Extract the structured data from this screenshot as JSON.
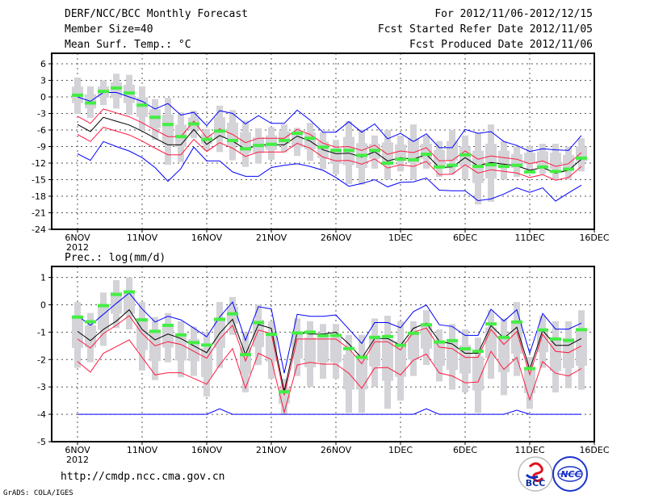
{
  "header": {
    "title": "DERF/NCC/BCC Monthly Forecast",
    "member_size": "Member Size=40",
    "variable": "Mean Surf. Temp.: °C",
    "period": "For 2012/11/06-2012/12/15",
    "refer_date": "Fcst Started Refer Date 2012/11/05",
    "produced_date": "Fcst Produced Date 2012/11/06"
  },
  "footer": {
    "url": "http://cmdp.ncc.cma.gov.cn",
    "credit": "GrADS: COLA/IGES",
    "logo_bcc": "BCC",
    "logo_ncc": "NCC"
  },
  "colors": {
    "mean": "#000000",
    "red": "#ff1a40",
    "blue": "#0000ff",
    "obs": "#44ee44",
    "box": "#d3d3d8",
    "grid": "#555555"
  },
  "chart_data": [
    {
      "type": "line",
      "title": "Mean Surf. Temp.: °C",
      "x_ticks": [
        "6NOV",
        "11NOV",
        "16NOV",
        "21NOV",
        "26NOV",
        "1DEC",
        "6DEC",
        "11DEC",
        "16DEC"
      ],
      "x_sub": "2012",
      "y_ticks": [
        6,
        3,
        0,
        -3,
        -6,
        -9,
        -12,
        -15,
        -18,
        -21,
        -24
      ],
      "ylim": [
        -24,
        7.9
      ],
      "grid": true,
      "days": 40,
      "series": {
        "mean": [
          -5,
          -6.3,
          -3.7,
          -4.4,
          -5.1,
          -6.2,
          -7.5,
          -8.7,
          -8.7,
          -5.9,
          -8.6,
          -7,
          -8,
          -9.5,
          -8.7,
          -8.7,
          -8.7,
          -7.1,
          -8,
          -9.6,
          -10.3,
          -10.2,
          -10.9,
          -9.95,
          -11.6,
          -11,
          -11.3,
          -10.4,
          -12.8,
          -12.7,
          -11,
          -12.5,
          -11.9,
          -12.2,
          -12.5,
          -13.3,
          -12.8,
          -13.8,
          -13.3,
          -11.3
        ],
        "red_hi": [
          -3.5,
          -4.8,
          -2.2,
          -2.9,
          -3.6,
          -4.7,
          -6,
          -7.2,
          -7.2,
          -4.4,
          -7.4,
          -5.8,
          -6.8,
          -8.3,
          -7.5,
          -7.5,
          -7.5,
          -5.9,
          -6.8,
          -8.4,
          -9.1,
          -9,
          -9.7,
          -8.75,
          -10.4,
          -9.8,
          -10.1,
          -9.2,
          -11.6,
          -11.5,
          -9.8,
          -11.3,
          -10.7,
          -11,
          -11.3,
          -12.1,
          -11.6,
          -12.6,
          -12.1,
          -10.1
        ],
        "red_lo": [
          -6.8,
          -8.1,
          -5.5,
          -6.2,
          -6.9,
          -8,
          -9.3,
          -10.5,
          -10.5,
          -7.7,
          -9.9,
          -8.3,
          -9.3,
          -10.8,
          -10,
          -10,
          -10,
          -8.4,
          -9.3,
          -10.9,
          -11.6,
          -11.5,
          -12.2,
          -11.25,
          -12.9,
          -12.3,
          -12.6,
          -11.7,
          -14.1,
          -14,
          -12.3,
          -13.8,
          -13.2,
          -13.5,
          -13.8,
          -14.6,
          -14.1,
          -15.1,
          -14.6,
          -12.6
        ],
        "blue_hi": [
          0,
          -0.8,
          0.8,
          0.8,
          0,
          -0.8,
          -2.2,
          -1.2,
          -3.3,
          -2.8,
          -5.2,
          -2.5,
          -3,
          -4.9,
          -3.4,
          -4.8,
          -4.8,
          -2.4,
          -4.2,
          -6.4,
          -6.4,
          -4.5,
          -6.4,
          -4.9,
          -7.6,
          -6.6,
          -8.1,
          -6.7,
          -9.2,
          -9.2,
          -5.9,
          -6.6,
          -6.3,
          -8.1,
          -8.8,
          -9.9,
          -9.4,
          -9.6,
          -9.7,
          -7.0
        ],
        "blue_lo": [
          -10.3,
          -11.5,
          -8.1,
          -9,
          -9.8,
          -11,
          -12.8,
          -15.3,
          -13,
          -9.1,
          -11.6,
          -11.6,
          -13.6,
          -14.4,
          -14.4,
          -12.8,
          -12.4,
          -12.1,
          -12.6,
          -13.3,
          -14.6,
          -16.2,
          -15.7,
          -15,
          -16.3,
          -15.5,
          -15.4,
          -14.7,
          -16.9,
          -17,
          -17,
          -18.8,
          -18.5,
          -17.6,
          -16.5,
          -17.3,
          -16.5,
          -18.9,
          -17.4,
          -16
        ],
        "obs": [
          0.3,
          -1.1,
          1,
          1.6,
          0.7,
          -1.5,
          -3.7,
          -5,
          -7.2,
          -4.9,
          -7.7,
          -6.2,
          -7.9,
          -9.4,
          -8.8,
          -8.6,
          -7.9,
          -6.6,
          -7.5,
          -9.1,
          -9.7,
          -9.7,
          -10.6,
          -9.7,
          -12,
          -11.3,
          -11.4,
          -10.4,
          -12.7,
          -12.4,
          -10.5,
          -12.6,
          -12.3,
          -12.6,
          -12.4,
          -13.6,
          -12.7,
          -13.5,
          -13.1,
          -11.1
        ],
        "range_hi": [
          3.5,
          1.9,
          3,
          4.2,
          4,
          1.9,
          -0.4,
          -0.2,
          -2.8,
          -2.5,
          -5.8,
          -1.6,
          -2.4,
          -4.3,
          -5.7,
          -5.5,
          -5,
          -5.6,
          -4.7,
          -6.4,
          -7.8,
          -4.4,
          -5.9,
          -7,
          -6,
          -7,
          -5,
          -7,
          -8,
          -6,
          -7,
          -6.5,
          -5,
          -8,
          -9,
          -9,
          -8.5,
          -8.5,
          -9,
          -7.5
        ],
        "range_lo": [
          -3.1,
          -3.8,
          -1.5,
          -2.1,
          -3.3,
          -6,
          -7.8,
          -12.3,
          -11.8,
          -7.5,
          -9.7,
          -10,
          -11.5,
          -12.7,
          -12.1,
          -11.4,
          -10,
          -10.7,
          -11.6,
          -13.1,
          -14,
          -15.8,
          -15.9,
          -13,
          -15,
          -13.5,
          -15,
          -13,
          -14.5,
          -14,
          -15,
          -19.5,
          -19,
          -15,
          -14.5,
          -13.5,
          -14,
          -15,
          -15,
          -13.5
        ]
      }
    },
    {
      "type": "line",
      "title": "Prec.: log(mm/d)",
      "x_ticks": [
        "6NOV",
        "11NOV",
        "16NOV",
        "21NOV",
        "26NOV",
        "1DEC",
        "6DEC",
        "11DEC",
        "16DEC"
      ],
      "x_sub": "2012",
      "y_ticks": [
        1,
        0,
        -1,
        -2,
        -3,
        -4,
        -5
      ],
      "ylim": [
        -5,
        1.4
      ],
      "grid": true,
      "days": 40,
      "series": {
        "mean": [
          -0.97,
          -1.31,
          -0.9,
          -0.6,
          -0.18,
          -0.9,
          -1.28,
          -1.07,
          -1.23,
          -1.5,
          -1.75,
          -1.04,
          -0.53,
          -1.82,
          -0.72,
          -0.86,
          -3.15,
          -1.0,
          -1.07,
          -1.07,
          -1.0,
          -1.43,
          -1.95,
          -1.23,
          -1.23,
          -1.48,
          -0.86,
          -0.67,
          -1.33,
          -1.43,
          -1.77,
          -1.77,
          -0.76,
          -1.22,
          -0.82,
          -2.36,
          -0.94,
          -1.48,
          -1.48,
          -1.23
        ],
        "red_hi": [
          -1.25,
          -1.58,
          -1.05,
          -0.75,
          -0.4,
          -1.05,
          -1.5,
          -1.35,
          -1.45,
          -1.7,
          -1.95,
          -1.25,
          -0.75,
          -2.05,
          -0.92,
          -1.05,
          -3.3,
          -1.25,
          -1.25,
          -1.25,
          -1.25,
          -1.6,
          -2.15,
          -1.35,
          -1.35,
          -1.65,
          -1.0,
          -0.85,
          -1.55,
          -1.6,
          -1.92,
          -1.92,
          -0.9,
          -1.45,
          -0.98,
          -2.55,
          -1.08,
          -1.7,
          -1.75,
          -1.5
        ],
        "red_lo": [
          -2.07,
          -2.46,
          -1.77,
          -1.53,
          -1.28,
          -1.92,
          -2.56,
          -2.48,
          -2.48,
          -2.69,
          -2.9,
          -2.2,
          -1.6,
          -3.05,
          -1.77,
          -2.0,
          -3.93,
          -2.2,
          -2.1,
          -2.17,
          -2.17,
          -2.5,
          -3.05,
          -2.31,
          -2.29,
          -2.56,
          -2.02,
          -1.8,
          -2.49,
          -2.6,
          -2.85,
          -2.82,
          -1.7,
          -2.36,
          -1.92,
          -3.47,
          -2.07,
          -2.5,
          -2.6,
          -2.33
        ],
        "blue_hi": [
          -0.4,
          -0.75,
          -0.35,
          0.05,
          0.43,
          -0.15,
          -0.63,
          -0.42,
          -0.55,
          -0.85,
          -1.17,
          -0.45,
          0.1,
          -1.3,
          -0.07,
          -0.15,
          -2.5,
          -0.35,
          -0.42,
          -0.42,
          -0.37,
          -0.89,
          -1.41,
          -0.65,
          -0.65,
          -0.84,
          -0.25,
          -0.01,
          -0.73,
          -0.79,
          -1.12,
          -1.12,
          -0.16,
          -0.6,
          -0.18,
          -1.77,
          -0.32,
          -0.89,
          -0.89,
          -0.67
        ],
        "blue_lo": [
          -4,
          -4,
          -4,
          -4,
          -4,
          -4,
          -4,
          -4,
          -4,
          -4,
          -4,
          -3.8,
          -4,
          -4,
          -4,
          -4,
          -4,
          -4,
          -4,
          -4,
          -4,
          -4,
          -4,
          -4,
          -4,
          -4,
          -4,
          -3.8,
          -4,
          -4,
          -4,
          -4,
          -4,
          -4,
          -3.85,
          -4,
          -4,
          -4,
          -4,
          -4
        ],
        "obs": [
          -0.45,
          -0.62,
          -0.03,
          0.38,
          0.47,
          -0.55,
          -0.97,
          -0.75,
          -1.1,
          -1.38,
          -1.47,
          -0.53,
          -0.33,
          -1.82,
          -0.65,
          -1.08,
          -3.18,
          -1.03,
          -1.0,
          -1.13,
          -1.12,
          -1.6,
          -1.92,
          -1.19,
          -1.16,
          -1.48,
          -1.04,
          -0.73,
          -1.36,
          -1.31,
          -1.61,
          -1.7,
          -0.7,
          -1.19,
          -0.63,
          -2.33,
          -0.92,
          -1.25,
          -1.3,
          -0.91
        ],
        "range_hi": [
          0.1,
          -0.3,
          0.45,
          0.9,
          1.0,
          0.1,
          -0.45,
          -0.3,
          -0.6,
          -0.8,
          -1.0,
          0.1,
          0.28,
          -1.0,
          0.0,
          -0.6,
          -2.7,
          -0.5,
          -0.6,
          -0.7,
          -0.7,
          -1.1,
          -1.1,
          -0.5,
          -0.4,
          -0.6,
          -0.6,
          -0.2,
          -0.9,
          -0.7,
          -0.9,
          -1.2,
          -0.2,
          -0.5,
          0.1,
          -1.9,
          -0.4,
          -0.6,
          -0.6,
          -0.2
        ],
        "range_lo": [
          -2.3,
          -2.1,
          -1.5,
          -0.85,
          -0.9,
          -2.4,
          -2.75,
          -2.1,
          -2.65,
          -2.6,
          -3.35,
          -2.3,
          -1.1,
          -3.2,
          -2.2,
          -2.7,
          -4.0,
          -2.6,
          -3.0,
          -2.7,
          -2.7,
          -3.95,
          -3.95,
          -3.0,
          -3.8,
          -3.5,
          -2.6,
          -2.2,
          -2.8,
          -3.1,
          -3.2,
          -3.95,
          -2.7,
          -3.3,
          -2.6,
          -3.8,
          -2.3,
          -3.2,
          -3.05,
          -3.1
        ]
      }
    }
  ]
}
